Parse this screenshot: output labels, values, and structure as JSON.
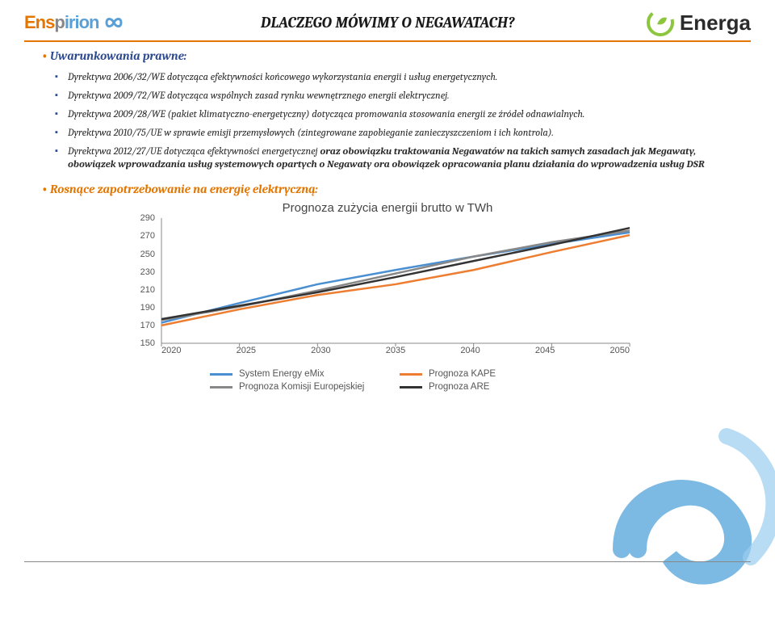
{
  "header": {
    "title": "DLACZEGO MÓWIMY O NEGAWATACH?",
    "logo_left_name": "Enspirion",
    "logo_left_color1": "#e37500",
    "logo_left_color2": "#5aa0d6",
    "logo_right_name": "Energa",
    "logo_right_color1": "#8cc63f",
    "logo_right_color2": "#2b2b2b"
  },
  "section1_title": "Uwarunkowania prawne:",
  "bullets": [
    "Dyrektywa 2006/32/WE dotycząca efektywności końcowego wykorzystania energii i usług energetycznych.",
    "Dyrektywa 2009/72/WE dotycząca wspólnych zasad rynku wewnętrznego energii elektrycznej.",
    "Dyrektywa 2009/28/WE (pakiet klimatyczno-energetyczny) dotycząca promowania stosowania energii ze źródeł odnawialnych.",
    "Dyrektywa 2010/75/UE w sprawie emisji przemysłowych (zintegrowane zapobieganie zanieczyszczeniom i ich kontrola).",
    "Dyrektywa 2012/27/UE dotycząca efektywności energetycznej <span class=\"bold\">oraz obowiązku traktowania Negawatów na takich samych zasadach jak Megawaty, obowiązek wprowadzania usług systemowych opartych o Negawaty ora obowiązek opracowania planu działania do wprowadzenia usług DSR</span>"
  ],
  "section2_title": "Rosnące zapotrzebowanie na energię elektryczną:",
  "chart": {
    "type": "line",
    "title": "Prognoza zużycia energii brutto w TWh",
    "title_fontsize": 15,
    "title_color": "#454545",
    "background_color": "#ffffff",
    "xlim": [
      2020,
      2050
    ],
    "ylim": [
      150,
      290
    ],
    "ytick_step": 20,
    "xticks": [
      2020,
      2025,
      2030,
      2035,
      2040,
      2045,
      2050
    ],
    "yticks": [
      150,
      170,
      190,
      210,
      230,
      250,
      270,
      290
    ],
    "axis_color": "#888888",
    "axis_font": "Arial",
    "axis_fontsize": 11,
    "line_width": 2.5,
    "grid": false,
    "series": [
      {
        "name": "System Energy eMix",
        "color": "#4a8fd1",
        "x": [
          2020,
          2025,
          2030,
          2035,
          2040,
          2045,
          2050
        ],
        "y": [
          173,
          195,
          216,
          232,
          247,
          261,
          274
        ]
      },
      {
        "name": "Prognoza Komisji Europejskiej",
        "color": "#888888",
        "x": [
          2020,
          2025,
          2030,
          2035,
          2040,
          2045,
          2050
        ],
        "y": [
          176,
          191,
          209,
          228,
          247,
          263,
          276
        ]
      },
      {
        "name": "Prognoza KAPE",
        "color": "#ed7d31",
        "x": [
          2020,
          2025,
          2030,
          2035,
          2040,
          2045,
          2050
        ],
        "y": [
          170,
          188,
          204,
          216,
          232,
          252,
          271
        ]
      },
      {
        "name": "Prognoza ARE",
        "color": "#333333",
        "x": [
          2020,
          2025,
          2030,
          2035,
          2040,
          2045,
          2050
        ],
        "y": [
          177,
          192,
          207,
          224,
          242,
          260,
          279
        ]
      }
    ],
    "legend_position": "bottom",
    "legend_columns": 2,
    "legend_fontsize": 11.5
  },
  "colors": {
    "heading_blue": "#2e4a8e",
    "accent_orange": "#e37500",
    "text": "#2b2b2b"
  }
}
